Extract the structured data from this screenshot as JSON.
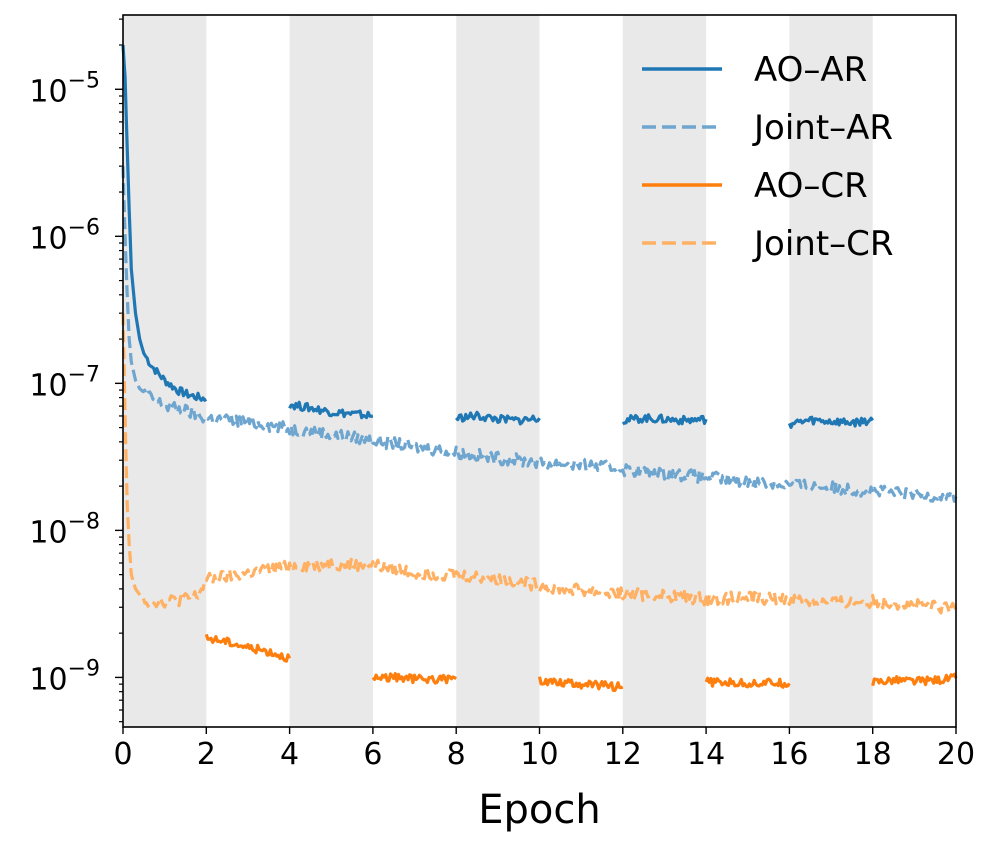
{
  "chart_data": {
    "type": "line",
    "title": "",
    "xlabel": "Epoch",
    "ylabel": "",
    "xlim": [
      0,
      20
    ],
    "ylim": [
      4.6e-10,
      3.2e-05
    ],
    "yscale": "log",
    "xticks": [
      "0",
      "2",
      "4",
      "6",
      "8",
      "10",
      "12",
      "14",
      "16",
      "18",
      "20"
    ],
    "yticks": [
      {
        "base": "10",
        "exp": "−5",
        "value": 1e-05
      },
      {
        "base": "10",
        "exp": "−6",
        "value": 1e-06
      },
      {
        "base": "10",
        "exp": "−7",
        "value": 1e-07
      },
      {
        "base": "10",
        "exp": "−8",
        "value": 1e-08
      },
      {
        "base": "10",
        "exp": "−9",
        "value": 1e-09
      }
    ],
    "shaded_bands": [
      [
        0,
        2
      ],
      [
        4,
        6
      ],
      [
        8,
        10
      ],
      [
        12,
        14
      ],
      [
        16,
        18
      ]
    ],
    "legend_position": "top-right",
    "series": [
      {
        "name": "AO–AR",
        "color": "#1f77b4",
        "style": "solid",
        "segments": [
          {
            "x": [
              0,
              0.05,
              0.1,
              0.15,
              0.2,
              0.3,
              0.4,
              0.5,
              0.7,
              1.0,
              1.3,
              1.6,
              2.0
            ],
            "y": [
              2e-05,
              1.2e-05,
              4e-06,
              1.5e-06,
              6e-07,
              3e-07,
              2e-07,
              1.6e-07,
              1.3e-07,
              1.05e-07,
              9e-08,
              8.3e-08,
              7.8e-08
            ]
          },
          {
            "x": [
              4,
              4.5,
              5,
              5.5,
              6
            ],
            "y": [
              7.2e-08,
              6.8e-08,
              6.4e-08,
              6.2e-08,
              6e-08
            ]
          },
          {
            "x": [
              8,
              8.5,
              9,
              9.5,
              10
            ],
            "y": [
              5.8e-08,
              6e-08,
              5.7e-08,
              5.6e-08,
              5.8e-08
            ]
          },
          {
            "x": [
              12,
              12.5,
              13,
              13.5,
              14
            ],
            "y": [
              5.6e-08,
              5.8e-08,
              5.7e-08,
              5.6e-08,
              5.7e-08
            ]
          },
          {
            "x": [
              16,
              16.5,
              17,
              17.5,
              18
            ],
            "y": [
              5.3e-08,
              5.6e-08,
              5.5e-08,
              5.4e-08,
              5.6e-08
            ]
          }
        ]
      },
      {
        "name": "Joint–AR",
        "color": "#6ea6d0",
        "style": "dashed",
        "segments": [
          {
            "x": [
              0,
              0.05,
              0.1,
              0.15,
              0.2,
              0.3,
              0.4,
              0.6,
              0.8,
              1.0,
              1.5,
              2.0,
              3.0,
              4.0,
              5.0,
              6.0,
              7.0,
              8.0,
              9.0,
              10.0,
              11.0,
              12.0,
              13.0,
              14.0,
              15.0,
              16.0,
              17.0,
              18.0,
              19.0,
              20.0
            ],
            "y": [
              3e-06,
              1e-06,
              4e-07,
              2e-07,
              1.4e-07,
              1.05e-07,
              9.2e-08,
              8.2e-08,
              7.6e-08,
              7e-08,
              6.5e-08,
              5.8e-08,
              5.5e-08,
              4.9e-08,
              4.5e-08,
              4.1e-08,
              3.7e-08,
              3.4e-08,
              3.1e-08,
              2.9e-08,
              2.8e-08,
              2.6e-08,
              2.45e-08,
              2.3e-08,
              2.15e-08,
              2.05e-08,
              1.95e-08,
              1.85e-08,
              1.75e-08,
              1.7e-08
            ]
          }
        ]
      },
      {
        "name": "AO–CR",
        "color": "#ff7f0e",
        "style": "solid",
        "segments": [
          {
            "x": [
              2,
              2.5,
              3,
              3.5,
              4
            ],
            "y": [
              1.85e-09,
              1.75e-09,
              1.6e-09,
              1.5e-09,
              1.35e-09
            ]
          },
          {
            "x": [
              6,
              6.5,
              7,
              7.5,
              8
            ],
            "y": [
              1e-09,
              1e-09,
              9.8e-10,
              9.7e-10,
              9.8e-10
            ]
          },
          {
            "x": [
              10,
              10.5,
              11,
              11.5,
              12
            ],
            "y": [
              9.5e-10,
              9.3e-10,
              9e-10,
              8.8e-10,
              8.6e-10
            ]
          },
          {
            "x": [
              14,
              14.5,
              15,
              15.5,
              16
            ],
            "y": [
              9.3e-10,
              9.2e-10,
              9.1e-10,
              9.2e-10,
              9.1e-10
            ]
          },
          {
            "x": [
              18,
              18.5,
              19,
              19.5,
              20
            ],
            "y": [
              9.3e-10,
              9.6e-10,
              9.4e-10,
              9.6e-10,
              9.9e-10
            ]
          }
        ]
      },
      {
        "name": "Joint–CR",
        "color": "#ffb062",
        "style": "dashed",
        "segments": [
          {
            "x": [
              0,
              0.05,
              0.1,
              0.15,
              0.2,
              0.3,
              0.45,
              0.6,
              1.0,
              1.5,
              1.8,
              2.0,
              3.0,
              4.0,
              5.0,
              6.0,
              7.0,
              8.0,
              9.0,
              10.0,
              11.0,
              12.0,
              13.0,
              14.0,
              15.0,
              16.0,
              17.0,
              18.0,
              19.0,
              20.0
            ],
            "y": [
              3e-07,
              6e-08,
              1.5e-08,
              8e-09,
              5e-09,
              4e-09,
              3.5e-09,
              3.3e-09,
              3.3e-09,
              3.4e-09,
              3.6e-09,
              4.6e-09,
              5.1e-09,
              5.7e-09,
              5.9e-09,
              5.8e-09,
              5.2e-09,
              5e-09,
              4.7e-09,
              4.2e-09,
              3.9e-09,
              3.7e-09,
              3.6e-09,
              3.4e-09,
              3.5e-09,
              3.4e-09,
              3.2e-09,
              3.3e-09,
              3.1e-09,
              2.9e-09
            ]
          }
        ]
      }
    ]
  }
}
